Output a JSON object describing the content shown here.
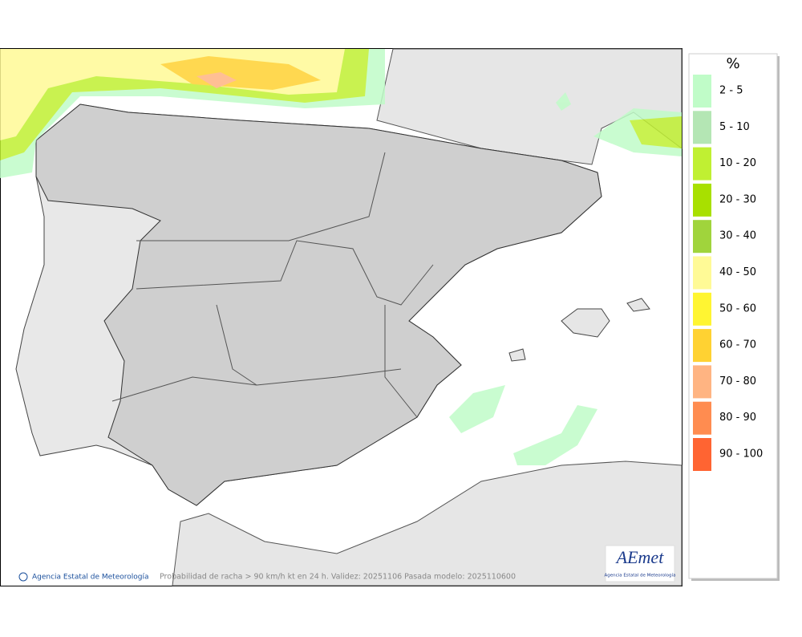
{
  "map": {
    "caption": "Probabilidad de racha > 90 km/h kt en 24 h. Validez: 20251106 Pasada modelo: 2025110600",
    "credit": "Agencia Estatal de Meteorología",
    "logo": {
      "name": "AEmet",
      "subtitle": "Agencia Estatal de Meteorología"
    }
  },
  "legend": {
    "title": "%",
    "items": [
      {
        "label": "2 - 5",
        "color": "#c0fcc8"
      },
      {
        "label": "5 - 10",
        "color": "#b4e6b4"
      },
      {
        "label": "10 - 20",
        "color": "#c0f032"
      },
      {
        "label": "20 - 30",
        "color": "#a8e000"
      },
      {
        "label": "30 - 40",
        "color": "#a0d43c"
      },
      {
        "label": "40 - 50",
        "color": "#fffa96"
      },
      {
        "label": "50 - 60",
        "color": "#fff532"
      },
      {
        "label": "60 - 70",
        "color": "#ffd232"
      },
      {
        "label": "70 - 80",
        "color": "#ffb482"
      },
      {
        "label": "80 - 90",
        "color": "#ff8c50"
      },
      {
        "label": "90 - 100",
        "color": "#ff6432"
      }
    ]
  }
}
